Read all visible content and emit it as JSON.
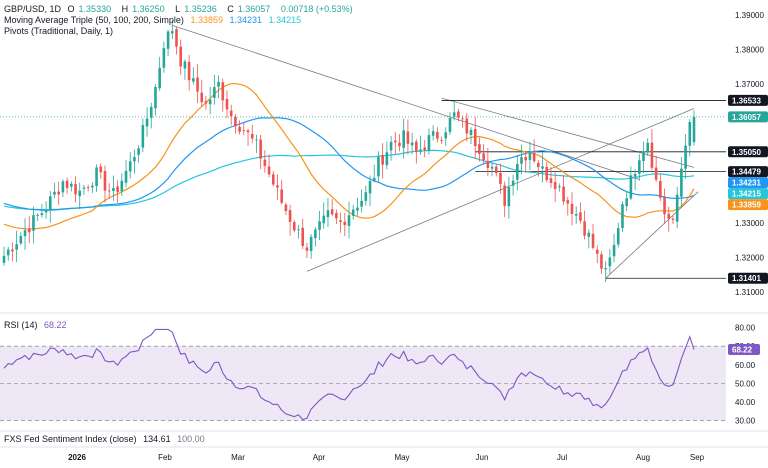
{
  "header": {
    "symbol": "GBP/USD, 1D",
    "o_label": "O",
    "o": "1.35330",
    "h_label": "H",
    "h": "1.36250",
    "l_label": "L",
    "l": "1.35236",
    "c_label": "C",
    "c": "1.36057",
    "change": "0.00718 (+0.53%)",
    "ma_title": "Moving Average Triple (50, 100, 200, Simple)",
    "ma_values": [
      "1.33859",
      "1.34231",
      "1.34215"
    ],
    "pivots_title": "Pivots (Traditional, Daily, 1)"
  },
  "colors": {
    "up": "#26a69a",
    "down": "#ef5350",
    "ma50": "#f7931a",
    "ma100": "#2196f3",
    "ma200": "#26c6da",
    "rsi": "#7e57c2",
    "rsi_band": "#ede7f6",
    "trendline": "#787b86",
    "price_line": "#26a69a"
  },
  "rsi_panel": {
    "label": "RSI (14)",
    "value": "68.22"
  },
  "bottom_panel": {
    "label": "FXS Fed Sentiment Index (close)",
    "value": "134.61",
    "value2": "100.00"
  },
  "chart_data": [
    {
      "type": "candlestick",
      "price_axis": {
        "ticks": [
          "1.39000",
          "1.38000",
          "1.37000",
          "1.36000",
          "1.35000",
          "1.34000",
          "1.33000",
          "1.32000",
          "1.31000"
        ],
        "range": [
          1.306,
          1.392
        ]
      },
      "x_axis": {
        "ticks": [
          "2026",
          "Feb",
          "Mar",
          "Apr",
          "May",
          "Jun",
          "Jul",
          "Aug",
          "Sep"
        ]
      },
      "price_labels": [
        {
          "value": 1.36533,
          "text": "1.36533",
          "kind": "level"
        },
        {
          "value": 1.36057,
          "text": "1.36057",
          "kind": "last"
        },
        {
          "value": 1.3505,
          "text": "1.35050",
          "kind": "level"
        },
        {
          "value": 1.34479,
          "text": "1.34479",
          "kind": "level"
        },
        {
          "value": 1.34231,
          "text": "1.34231",
          "kind": "ma100"
        },
        {
          "value": 1.34215,
          "text": "1.34215",
          "kind": "ma200"
        },
        {
          "value": 1.33859,
          "text": "1.33859",
          "kind": "ma50"
        },
        {
          "value": 1.31401,
          "text": "1.31401",
          "kind": "level"
        }
      ]
    },
    {
      "type": "line",
      "name": "RSI (14)",
      "y_axis": {
        "ticks": [
          "80.00",
          "70.00",
          "60.00",
          "50.00",
          "40.00",
          "30.00"
        ],
        "range": [
          26,
          83
        ]
      },
      "levels": [
        70,
        50,
        30
      ],
      "last_value": 68.22
    }
  ]
}
